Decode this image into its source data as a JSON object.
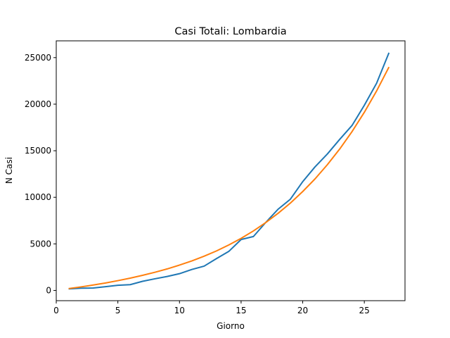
{
  "chart_data": {
    "type": "line",
    "title": "Casi Totali: Lombardia",
    "xlabel": "Giorno",
    "ylabel": "N Casi",
    "xlim": [
      0,
      28.3
    ],
    "ylim": [
      -1100,
      26800
    ],
    "xticks": [
      0,
      5,
      10,
      15,
      20,
      25
    ],
    "yticks": [
      0,
      5000,
      10000,
      15000,
      20000,
      25000
    ],
    "grid": false,
    "series": [
      {
        "color": "#1f77b4",
        "x": [
          1,
          2,
          3,
          4,
          5,
          6,
          7,
          8,
          9,
          10,
          11,
          12,
          13,
          14,
          15,
          16,
          17,
          18,
          19,
          20,
          21,
          22,
          23,
          24,
          25,
          26,
          27
        ],
        "y": [
          170,
          240,
          260,
          400,
          550,
          620,
          980,
          1250,
          1500,
          1800,
          2250,
          2610,
          3420,
          4190,
          5470,
          5790,
          7300,
          8720,
          9800,
          11680,
          13270,
          14650,
          16220,
          17710,
          19880,
          22260,
          25520
        ]
      },
      {
        "color": "#ff7f0e",
        "x": [
          1,
          2,
          3,
          4,
          5,
          6,
          7,
          8,
          9,
          10,
          11,
          12,
          13,
          14,
          15,
          16,
          17,
          18,
          19,
          20,
          21,
          22,
          23,
          24,
          25,
          26,
          27
        ],
        "y": [
          200,
          380,
          580,
          800,
          1050,
          1320,
          1620,
          1950,
          2310,
          2720,
          3170,
          3680,
          4240,
          4880,
          5590,
          6390,
          7290,
          8280,
          9380,
          10620,
          11980,
          13500,
          15180,
          17050,
          19130,
          21430,
          23990
        ]
      }
    ]
  }
}
